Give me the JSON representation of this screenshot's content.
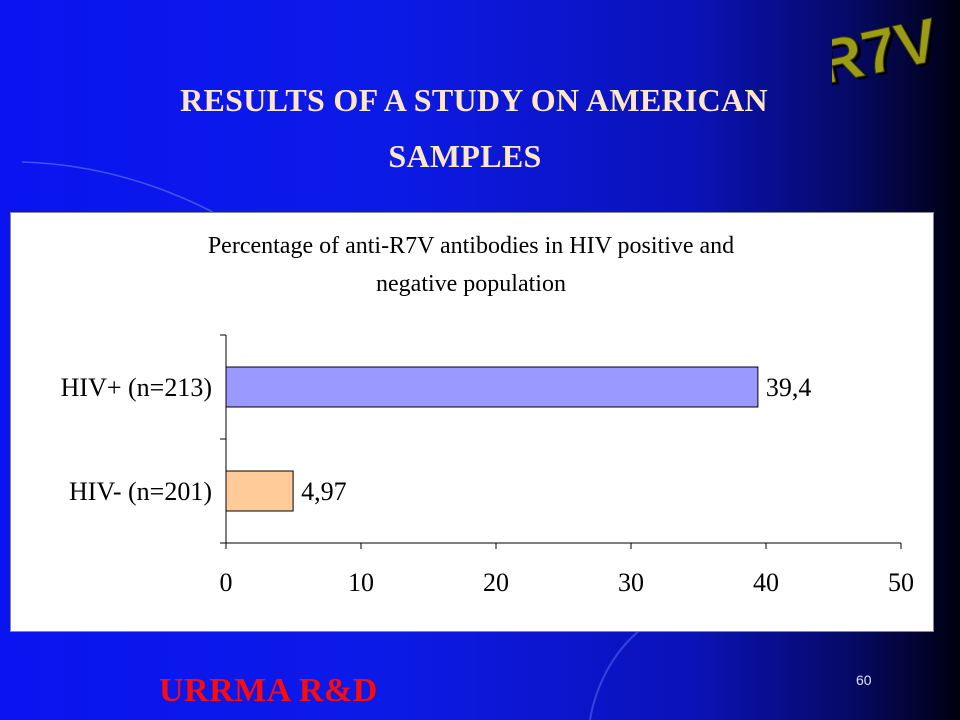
{
  "slide": {
    "title_line1": "RESULTS OF A STUDY ON AMERICAN",
    "title_line2": "SAMPLES",
    "logo_text": "R7V",
    "footer_org": "URRMA R&D",
    "page_number": "60"
  },
  "colors": {
    "title": "#ffe6c4",
    "footer": "#ff0a0a",
    "bar_hiv_pos": "#9999ff",
    "bar_hiv_neg": "#ffcc99"
  },
  "chart_data": {
    "type": "bar",
    "orientation": "horizontal",
    "title_line1": "Percentage of anti-R7V antibodies in HIV positive and",
    "title_line2": "negative population",
    "categories": [
      "HIV+ (n=213)",
      "HIV- (n=201)"
    ],
    "values": [
      39.4,
      4.97
    ],
    "value_labels": [
      "39,4",
      "4,97"
    ],
    "xlim": [
      0,
      50
    ],
    "x_ticks": [
      0,
      10,
      20,
      30,
      40,
      50
    ],
    "x_tick_labels": [
      "0",
      "10",
      "20",
      "30",
      "40",
      "50"
    ],
    "grid": false,
    "legend": "none"
  }
}
